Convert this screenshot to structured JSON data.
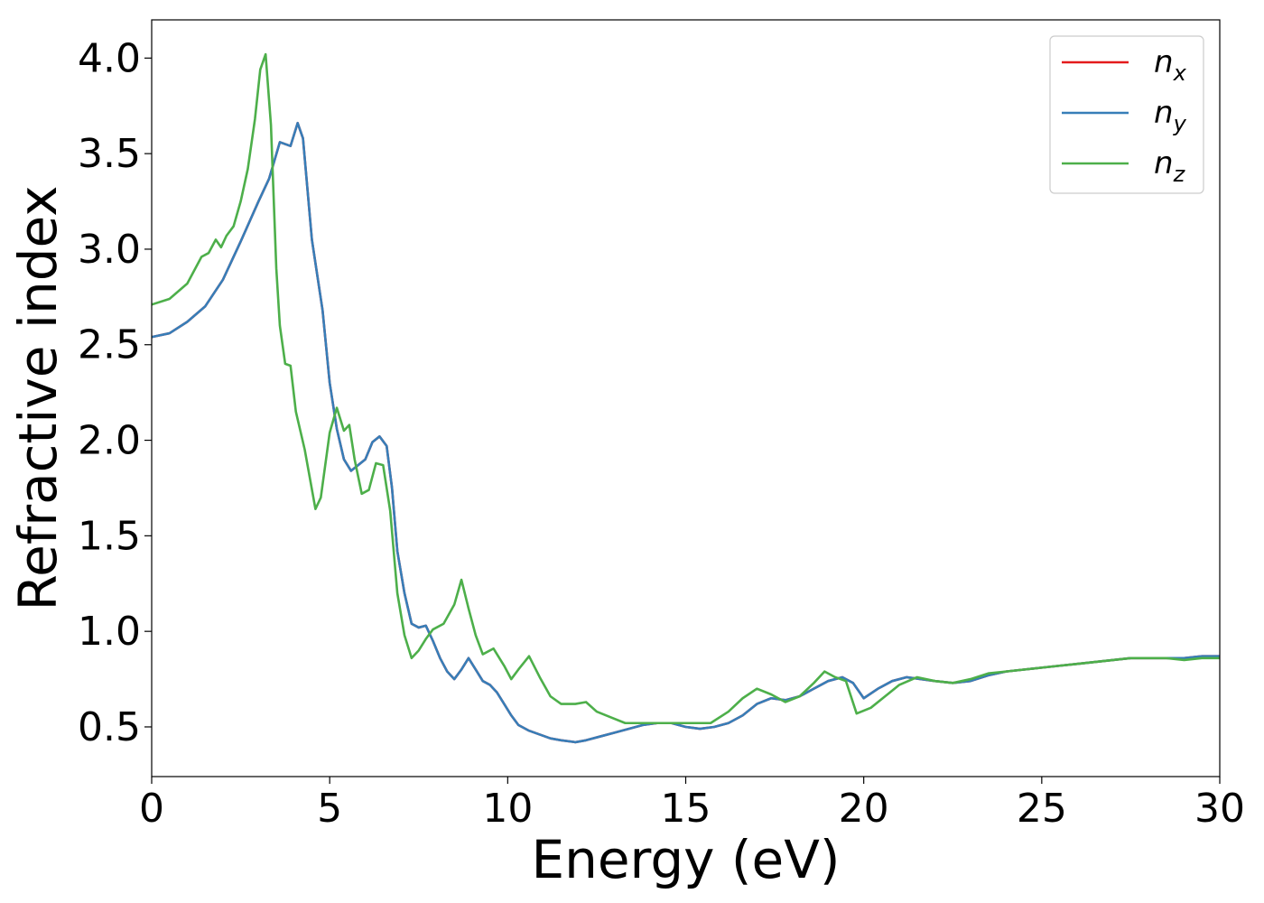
{
  "chart_data": {
    "type": "line",
    "title": "",
    "xlabel": "Energy (eV)",
    "ylabel": "Refractive index",
    "xlim": [
      0,
      30
    ],
    "ylim": [
      0.24,
      4.2
    ],
    "xticks": [
      0,
      5,
      10,
      15,
      20,
      25,
      30
    ],
    "yticks": [
      0.5,
      1.0,
      1.5,
      2.0,
      2.5,
      3.0,
      3.5,
      4.0
    ],
    "grid": false,
    "legend": {
      "placement": "top-right",
      "entries": [
        {
          "base": "n",
          "sub": "x",
          "color": "#e41a1c"
        },
        {
          "base": "n",
          "sub": "y",
          "color": "#377eb8"
        },
        {
          "base": "n",
          "sub": "z",
          "color": "#4daf4a"
        }
      ]
    },
    "series": [
      {
        "name": "n_x",
        "color": "#e41a1c",
        "x": [
          0,
          0.5,
          1,
          1.5,
          2,
          2.5,
          3,
          3.3,
          3.6,
          3.9,
          4.1,
          4.25,
          4.5,
          4.8,
          5.0,
          5.2,
          5.4,
          5.6,
          5.8,
          6.0,
          6.2,
          6.4,
          6.6,
          6.75,
          6.9,
          7.1,
          7.3,
          7.5,
          7.7,
          7.9,
          8.1,
          8.3,
          8.5,
          8.7,
          8.9,
          9.1,
          9.3,
          9.5,
          9.7,
          9.9,
          10.1,
          10.3,
          10.6,
          10.9,
          11.2,
          11.5,
          11.9,
          12.2,
          12.6,
          13.0,
          13.4,
          13.8,
          14.2,
          14.6,
          15.0,
          15.4,
          15.8,
          16.2,
          16.6,
          17.0,
          17.4,
          17.8,
          18.2,
          18.6,
          19.0,
          19.4,
          19.7,
          20.0,
          20.4,
          20.8,
          21.2,
          21.6,
          22.0,
          22.5,
          23.0,
          23.5,
          24.0,
          24.5,
          25.0,
          25.5,
          26.0,
          26.5,
          27.0,
          27.5,
          28.0,
          28.5,
          29.0,
          29.5,
          30.0
        ],
        "y": [
          2.54,
          2.56,
          2.62,
          2.7,
          2.84,
          3.04,
          3.25,
          3.37,
          3.56,
          3.54,
          3.66,
          3.58,
          3.05,
          2.68,
          2.3,
          2.06,
          1.9,
          1.84,
          1.87,
          1.9,
          1.99,
          2.02,
          1.97,
          1.75,
          1.42,
          1.2,
          1.04,
          1.02,
          1.03,
          0.95,
          0.86,
          0.79,
          0.75,
          0.8,
          0.86,
          0.8,
          0.74,
          0.72,
          0.68,
          0.62,
          0.56,
          0.51,
          0.48,
          0.46,
          0.44,
          0.43,
          0.42,
          0.43,
          0.45,
          0.47,
          0.49,
          0.51,
          0.52,
          0.52,
          0.5,
          0.49,
          0.5,
          0.52,
          0.56,
          0.62,
          0.65,
          0.64,
          0.66,
          0.7,
          0.74,
          0.76,
          0.73,
          0.65,
          0.7,
          0.74,
          0.76,
          0.75,
          0.74,
          0.73,
          0.74,
          0.77,
          0.79,
          0.8,
          0.81,
          0.82,
          0.83,
          0.84,
          0.85,
          0.86,
          0.86,
          0.86,
          0.86,
          0.87,
          0.87
        ]
      },
      {
        "name": "n_y",
        "color": "#377eb8",
        "x": [
          0,
          0.5,
          1,
          1.5,
          2,
          2.5,
          3,
          3.3,
          3.6,
          3.9,
          4.1,
          4.25,
          4.5,
          4.8,
          5.0,
          5.2,
          5.4,
          5.6,
          5.8,
          6.0,
          6.2,
          6.4,
          6.6,
          6.75,
          6.9,
          7.1,
          7.3,
          7.5,
          7.7,
          7.9,
          8.1,
          8.3,
          8.5,
          8.7,
          8.9,
          9.1,
          9.3,
          9.5,
          9.7,
          9.9,
          10.1,
          10.3,
          10.6,
          10.9,
          11.2,
          11.5,
          11.9,
          12.2,
          12.6,
          13.0,
          13.4,
          13.8,
          14.2,
          14.6,
          15.0,
          15.4,
          15.8,
          16.2,
          16.6,
          17.0,
          17.4,
          17.8,
          18.2,
          18.6,
          19.0,
          19.4,
          19.7,
          20.0,
          20.4,
          20.8,
          21.2,
          21.6,
          22.0,
          22.5,
          23.0,
          23.5,
          24.0,
          24.5,
          25.0,
          25.5,
          26.0,
          26.5,
          27.0,
          27.5,
          28.0,
          28.5,
          29.0,
          29.5,
          30.0
        ],
        "y": [
          2.54,
          2.56,
          2.62,
          2.7,
          2.84,
          3.04,
          3.25,
          3.37,
          3.56,
          3.54,
          3.66,
          3.58,
          3.05,
          2.68,
          2.3,
          2.06,
          1.9,
          1.84,
          1.87,
          1.9,
          1.99,
          2.02,
          1.97,
          1.75,
          1.42,
          1.2,
          1.04,
          1.02,
          1.03,
          0.95,
          0.86,
          0.79,
          0.75,
          0.8,
          0.86,
          0.8,
          0.74,
          0.72,
          0.68,
          0.62,
          0.56,
          0.51,
          0.48,
          0.46,
          0.44,
          0.43,
          0.42,
          0.43,
          0.45,
          0.47,
          0.49,
          0.51,
          0.52,
          0.52,
          0.5,
          0.49,
          0.5,
          0.52,
          0.56,
          0.62,
          0.65,
          0.64,
          0.66,
          0.7,
          0.74,
          0.76,
          0.73,
          0.65,
          0.7,
          0.74,
          0.76,
          0.75,
          0.74,
          0.73,
          0.74,
          0.77,
          0.79,
          0.8,
          0.81,
          0.82,
          0.83,
          0.84,
          0.85,
          0.86,
          0.86,
          0.86,
          0.86,
          0.87,
          0.87
        ]
      },
      {
        "name": "n_z",
        "color": "#4daf4a",
        "x": [
          0,
          0.5,
          1,
          1.4,
          1.6,
          1.8,
          1.95,
          2.1,
          2.3,
          2.5,
          2.7,
          2.9,
          3.05,
          3.2,
          3.35,
          3.5,
          3.6,
          3.75,
          3.9,
          4.05,
          4.3,
          4.6,
          4.75,
          5.0,
          5.2,
          5.4,
          5.55,
          5.7,
          5.9,
          6.1,
          6.3,
          6.5,
          6.7,
          6.9,
          7.1,
          7.3,
          7.5,
          7.7,
          7.9,
          8.2,
          8.5,
          8.7,
          8.9,
          9.1,
          9.3,
          9.6,
          9.9,
          10.1,
          10.3,
          10.6,
          10.9,
          11.2,
          11.5,
          11.9,
          12.2,
          12.5,
          12.9,
          13.3,
          13.7,
          14.2,
          14.7,
          15.2,
          15.7,
          16.2,
          16.6,
          17.0,
          17.4,
          17.8,
          18.2,
          18.6,
          18.9,
          19.2,
          19.5,
          19.8,
          20.2,
          20.6,
          21.0,
          21.5,
          22.0,
          22.5,
          23.0,
          23.5,
          24.0,
          24.5,
          25.0,
          25.5,
          26.0,
          26.5,
          27.0,
          27.5,
          28.0,
          28.5,
          29.0,
          29.5,
          30.0
        ],
        "y": [
          2.71,
          2.74,
          2.82,
          2.96,
          2.98,
          3.05,
          3.01,
          3.07,
          3.12,
          3.25,
          3.42,
          3.68,
          3.94,
          4.02,
          3.65,
          2.9,
          2.6,
          2.4,
          2.39,
          2.15,
          1.95,
          1.64,
          1.7,
          2.04,
          2.17,
          2.05,
          2.08,
          1.9,
          1.72,
          1.74,
          1.88,
          1.87,
          1.63,
          1.2,
          0.98,
          0.86,
          0.9,
          0.96,
          1.01,
          1.04,
          1.14,
          1.27,
          1.12,
          0.98,
          0.88,
          0.91,
          0.82,
          0.75,
          0.8,
          0.87,
          0.76,
          0.66,
          0.62,
          0.62,
          0.63,
          0.58,
          0.55,
          0.52,
          0.52,
          0.52,
          0.52,
          0.52,
          0.52,
          0.58,
          0.65,
          0.7,
          0.67,
          0.63,
          0.66,
          0.73,
          0.79,
          0.76,
          0.74,
          0.57,
          0.6,
          0.66,
          0.72,
          0.76,
          0.74,
          0.73,
          0.75,
          0.78,
          0.79,
          0.8,
          0.81,
          0.82,
          0.83,
          0.84,
          0.85,
          0.86,
          0.86,
          0.86,
          0.85,
          0.86,
          0.86
        ]
      }
    ]
  }
}
